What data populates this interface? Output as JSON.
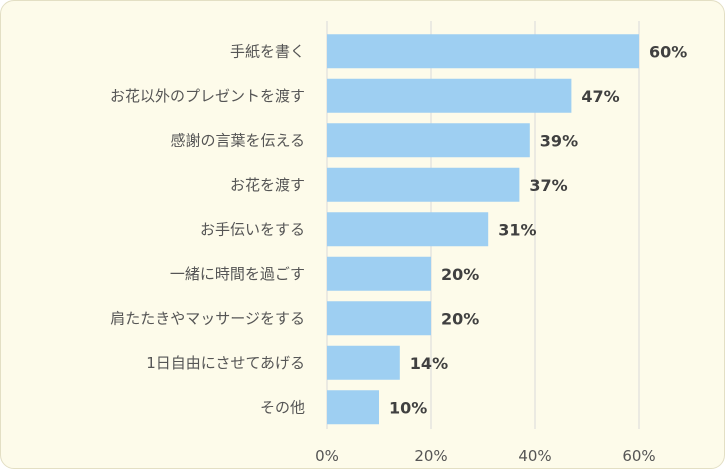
{
  "chart_data": {
    "type": "bar",
    "orientation": "horizontal",
    "categories": [
      "手紙を書く",
      "お花以外のプレゼントを渡す",
      "感謝の言葉を伝える",
      "お花を渡す",
      "お手伝いをする",
      "一緒に時間を過ごす",
      "肩たたきやマッサージをする",
      "1日自由にさせてあげる",
      "その他"
    ],
    "values": [
      60,
      47,
      39,
      37,
      31,
      20,
      20,
      14,
      10
    ],
    "value_labels": [
      "60%",
      "47%",
      "39%",
      "37%",
      "31%",
      "20%",
      "20%",
      "14%",
      "10%"
    ],
    "xlim": [
      0,
      60
    ],
    "xticks": [
      "0%",
      "20%",
      "40%",
      "60%"
    ],
    "xtick_values": [
      0,
      20,
      40,
      60
    ],
    "grid": true,
    "colors": {
      "bar": "#9ecff2",
      "background": "#fdfbea"
    }
  }
}
